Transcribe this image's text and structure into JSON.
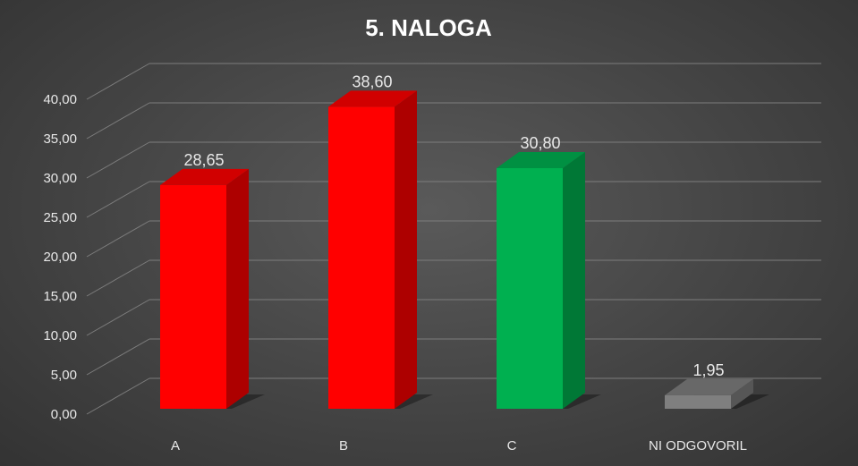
{
  "chart_data": {
    "type": "bar",
    "title": "5. NALOGA",
    "xlabel": "",
    "ylabel": "",
    "categories": [
      "A",
      "B",
      "C",
      "NI ODGOVORIL"
    ],
    "values": [
      28.65,
      38.6,
      30.8,
      1.95
    ],
    "value_labels": [
      "28,65",
      "38,60",
      "30,80",
      "1,95"
    ],
    "bar_colors": [
      "#ff0000",
      "#ff0000",
      "#00b050",
      "#7f7f7f"
    ],
    "ylim": [
      0,
      40
    ],
    "yticks": [
      "0,00",
      "5,00",
      "10,00",
      "15,00",
      "20,00",
      "25,00",
      "30,00",
      "35,00",
      "40,00"
    ],
    "grid": true,
    "legend": "none",
    "style": "3d-column"
  }
}
